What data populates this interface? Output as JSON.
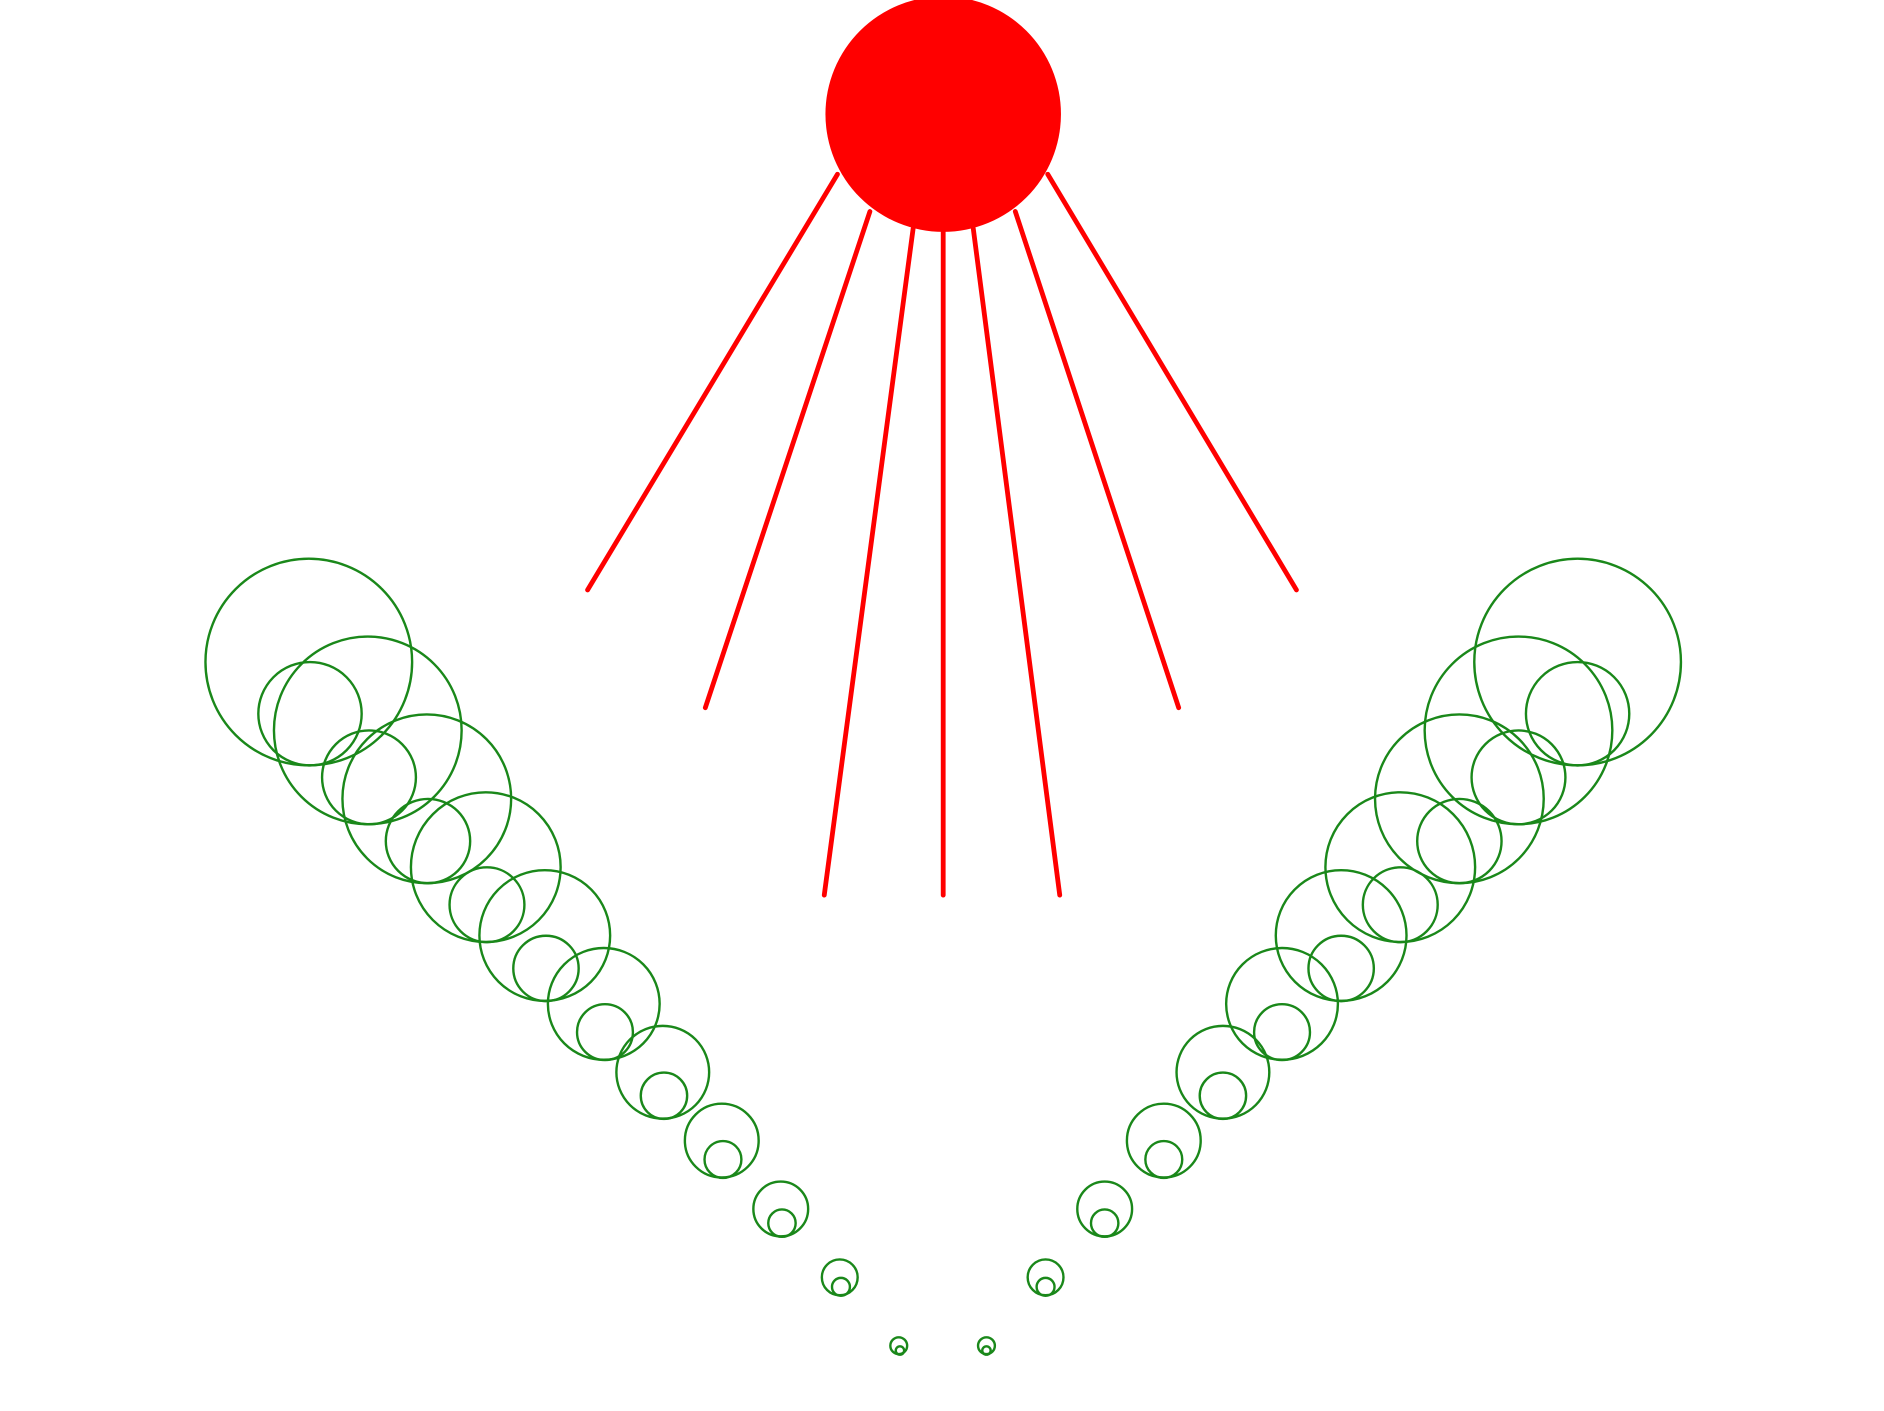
{
  "figure": {
    "background_color": "#ffffff",
    "sun": {
      "color": "#ff0000",
      "ray_count": 7
    },
    "rings": {
      "color": "#1a881a",
      "arms": [
        "left",
        "right"
      ],
      "pairs_per_arm": 11
    }
  }
}
